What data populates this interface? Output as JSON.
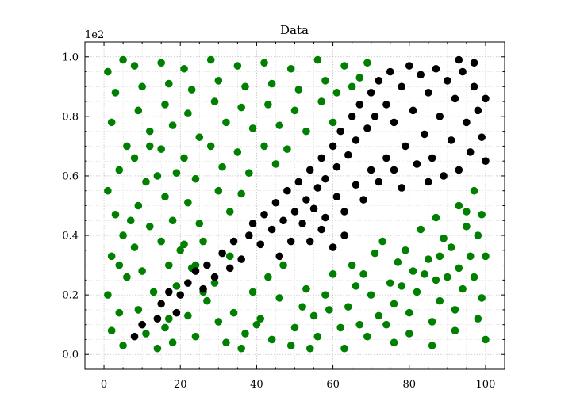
{
  "chart_data": {
    "type": "scatter",
    "title": "Data",
    "xlabel": "",
    "ylabel": "",
    "y_offset_label": "1e2",
    "xlim": [
      -5,
      105
    ],
    "ylim": [
      -5,
      105
    ],
    "xticks": [
      0,
      20,
      40,
      60,
      80,
      100
    ],
    "xtick_labels": [
      "0",
      "20",
      "40",
      "60",
      "80",
      "100"
    ],
    "yticks": [
      0,
      20,
      40,
      60,
      80,
      100
    ],
    "ytick_labels": [
      "0.0",
      "0.2",
      "0.4",
      "0.6",
      "0.8",
      "1.0"
    ],
    "grid": true,
    "colors": {
      "class_0": "#008000",
      "class_1": "#000000"
    },
    "series": [
      {
        "color": "#008000",
        "points": [
          [
            1,
            95
          ],
          [
            3,
            88
          ],
          [
            5,
            99
          ],
          [
            2,
            78
          ],
          [
            6,
            70
          ],
          [
            4,
            62
          ],
          [
            1,
            55
          ],
          [
            3,
            47
          ],
          [
            5,
            40
          ],
          [
            2,
            33
          ],
          [
            6,
            26
          ],
          [
            1,
            20
          ],
          [
            4,
            14
          ],
          [
            2,
            8
          ],
          [
            5,
            3
          ],
          [
            8,
            97
          ],
          [
            10,
            90
          ],
          [
            9,
            82
          ],
          [
            12,
            75
          ],
          [
            8,
            66
          ],
          [
            11,
            58
          ],
          [
            9,
            50
          ],
          [
            12,
            43
          ],
          [
            8,
            36
          ],
          [
            10,
            28
          ],
          [
            13,
            21
          ],
          [
            9,
            15
          ],
          [
            11,
            7
          ],
          [
            14,
            2
          ],
          [
            15,
            98
          ],
          [
            17,
            91
          ],
          [
            16,
            84
          ],
          [
            18,
            77
          ],
          [
            15,
            69
          ],
          [
            19,
            61
          ],
          [
            16,
            53
          ],
          [
            18,
            45
          ],
          [
            15,
            38
          ],
          [
            17,
            30
          ],
          [
            19,
            23
          ],
          [
            16,
            9
          ],
          [
            18,
            4
          ],
          [
            21,
            96
          ],
          [
            23,
            89
          ],
          [
            22,
            81
          ],
          [
            25,
            73
          ],
          [
            21,
            66
          ],
          [
            24,
            59
          ],
          [
            22,
            51
          ],
          [
            25,
            44
          ],
          [
            21,
            37
          ],
          [
            23,
            29
          ],
          [
            26,
            21
          ],
          [
            22,
            13
          ],
          [
            24,
            6
          ],
          [
            28,
            99
          ],
          [
            30,
            92
          ],
          [
            29,
            85
          ],
          [
            32,
            78
          ],
          [
            28,
            70
          ],
          [
            31,
            63
          ],
          [
            30,
            55
          ],
          [
            33,
            48
          ],
          [
            27,
            18
          ],
          [
            30,
            11
          ],
          [
            32,
            4
          ],
          [
            29,
            24
          ],
          [
            35,
            97
          ],
          [
            37,
            90
          ],
          [
            36,
            83
          ],
          [
            39,
            76
          ],
          [
            35,
            68
          ],
          [
            38,
            61
          ],
          [
            36,
            54
          ],
          [
            34,
            14
          ],
          [
            37,
            7
          ],
          [
            39,
            21
          ],
          [
            36,
            2
          ],
          [
            42,
            98
          ],
          [
            44,
            91
          ],
          [
            43,
            84
          ],
          [
            46,
            77
          ],
          [
            42,
            70
          ],
          [
            45,
            64
          ],
          [
            41,
            12
          ],
          [
            44,
            5
          ],
          [
            46,
            19
          ],
          [
            43,
            26
          ],
          [
            49,
            96
          ],
          [
            51,
            89
          ],
          [
            50,
            82
          ],
          [
            53,
            75
          ],
          [
            48,
            69
          ],
          [
            52,
            16
          ],
          [
            50,
            9
          ],
          [
            53,
            22
          ],
          [
            49,
            3
          ],
          [
            56,
            99
          ],
          [
            58,
            92
          ],
          [
            57,
            85
          ],
          [
            60,
            78
          ],
          [
            55,
            13
          ],
          [
            58,
            20
          ],
          [
            56,
            6
          ],
          [
            60,
            27
          ],
          [
            63,
            97
          ],
          [
            65,
            90
          ],
          [
            61,
            88
          ],
          [
            64,
            16
          ],
          [
            66,
            23
          ],
          [
            62,
            9
          ],
          [
            65,
            30
          ],
          [
            63,
            2
          ],
          [
            69,
            98
          ],
          [
            67,
            93
          ],
          [
            70,
            20
          ],
          [
            72,
            13
          ],
          [
            68,
            27
          ],
          [
            71,
            34
          ],
          [
            69,
            6
          ],
          [
            74,
            10
          ],
          [
            76,
            17
          ],
          [
            75,
            24
          ],
          [
            77,
            31
          ],
          [
            73,
            38
          ],
          [
            76,
            4
          ],
          [
            80,
            14
          ],
          [
            82,
            21
          ],
          [
            81,
            28
          ],
          [
            79,
            35
          ],
          [
            83,
            42
          ],
          [
            80,
            7
          ],
          [
            86,
            11
          ],
          [
            88,
            18
          ],
          [
            87,
            25
          ],
          [
            85,
            32
          ],
          [
            89,
            39
          ],
          [
            87,
            46
          ],
          [
            86,
            3
          ],
          [
            92,
            15
          ],
          [
            94,
            22
          ],
          [
            93,
            29
          ],
          [
            91,
            36
          ],
          [
            95,
            43
          ],
          [
            93,
            50
          ],
          [
            92,
            8
          ],
          [
            98,
            12
          ],
          [
            99,
            19
          ],
          [
            97,
            26
          ],
          [
            100,
            33
          ],
          [
            98,
            40
          ],
          [
            99,
            47
          ],
          [
            97,
            55
          ],
          [
            100,
            5
          ],
          [
            14,
            60
          ],
          [
            7,
            45
          ],
          [
            20,
            35
          ],
          [
            26,
            38
          ],
          [
            12,
            70
          ],
          [
            4,
            30
          ],
          [
            17,
            12
          ],
          [
            24,
            30
          ],
          [
            33,
            33
          ],
          [
            40,
            10
          ],
          [
            47,
            30
          ],
          [
            54,
            2
          ],
          [
            59,
            15
          ],
          [
            67,
            10
          ],
          [
            78,
            23
          ],
          [
            84,
            27
          ],
          [
            90,
            26
          ],
          [
            96,
            33
          ],
          [
            95,
            48
          ],
          [
            88,
            33
          ]
        ]
      },
      {
        "color": "#000000",
        "points": [
          [
            8,
            6
          ],
          [
            10,
            10
          ],
          [
            14,
            12
          ],
          [
            15,
            17
          ],
          [
            17,
            21
          ],
          [
            20,
            20
          ],
          [
            19,
            14
          ],
          [
            22,
            24
          ],
          [
            24,
            28
          ],
          [
            26,
            22
          ],
          [
            27,
            30
          ],
          [
            29,
            26
          ],
          [
            31,
            34
          ],
          [
            33,
            29
          ],
          [
            34,
            38
          ],
          [
            36,
            32
          ],
          [
            38,
            40
          ],
          [
            39,
            44
          ],
          [
            41,
            37
          ],
          [
            42,
            47
          ],
          [
            44,
            42
          ],
          [
            45,
            51
          ],
          [
            47,
            45
          ],
          [
            48,
            55
          ],
          [
            50,
            48
          ],
          [
            51,
            58
          ],
          [
            53,
            52
          ],
          [
            54,
            62
          ],
          [
            56,
            56
          ],
          [
            57,
            66
          ],
          [
            58,
            59
          ],
          [
            60,
            70
          ],
          [
            61,
            63
          ],
          [
            62,
            75
          ],
          [
            64,
            67
          ],
          [
            65,
            80
          ],
          [
            66,
            72
          ],
          [
            67,
            84
          ],
          [
            69,
            76
          ],
          [
            70,
            88
          ],
          [
            71,
            80
          ],
          [
            72,
            92
          ],
          [
            74,
            84
          ],
          [
            75,
            95
          ],
          [
            76,
            78
          ],
          [
            78,
            90
          ],
          [
            79,
            70
          ],
          [
            80,
            97
          ],
          [
            81,
            82
          ],
          [
            83,
            94
          ],
          [
            84,
            74
          ],
          [
            85,
            88
          ],
          [
            86,
            66
          ],
          [
            87,
            96
          ],
          [
            88,
            80
          ],
          [
            89,
            60
          ],
          [
            90,
            92
          ],
          [
            91,
            72
          ],
          [
            92,
            86
          ],
          [
            93,
            62
          ],
          [
            94,
            95
          ],
          [
            95,
            78
          ],
          [
            96,
            68
          ],
          [
            97,
            90
          ],
          [
            98,
            82
          ],
          [
            99,
            73
          ],
          [
            100,
            86
          ],
          [
            100,
            65
          ],
          [
            97,
            98
          ],
          [
            93,
            99
          ],
          [
            46,
            33
          ],
          [
            49,
            38
          ],
          [
            52,
            44
          ],
          [
            55,
            49
          ],
          [
            58,
            46
          ],
          [
            61,
            53
          ],
          [
            63,
            48
          ],
          [
            66,
            57
          ],
          [
            68,
            52
          ],
          [
            70,
            62
          ],
          [
            72,
            58
          ],
          [
            74,
            66
          ],
          [
            76,
            62
          ],
          [
            78,
            56
          ],
          [
            82,
            64
          ],
          [
            85,
            58
          ],
          [
            63,
            40
          ],
          [
            60,
            36
          ],
          [
            57,
            42
          ],
          [
            54,
            38
          ]
        ]
      }
    ]
  }
}
